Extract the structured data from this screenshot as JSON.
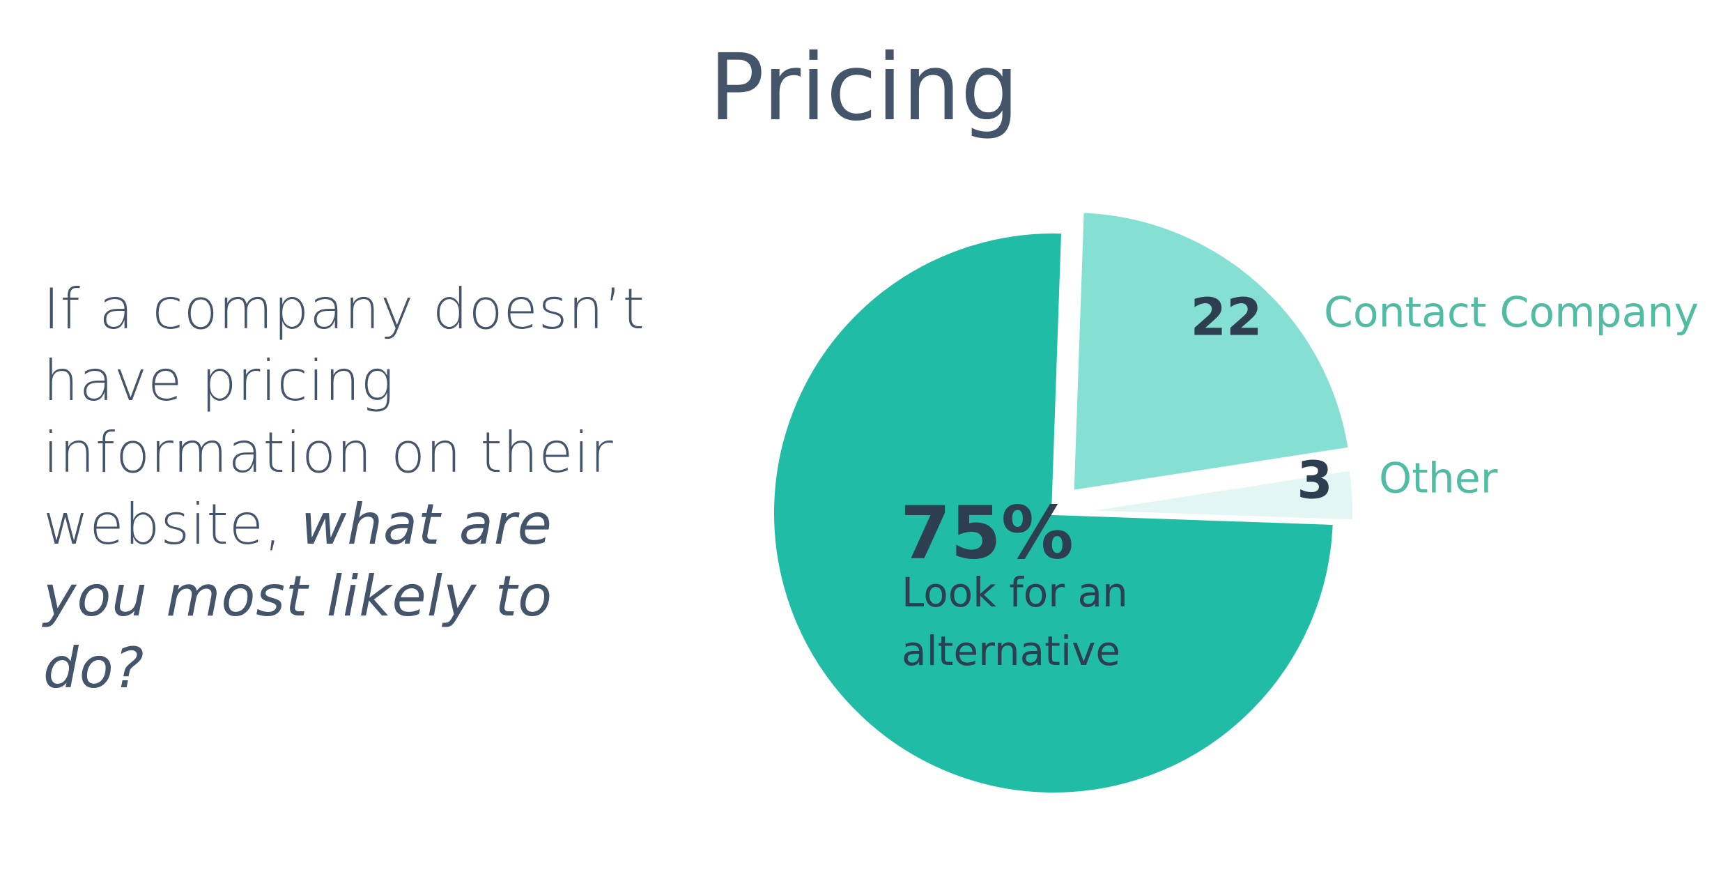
{
  "chart_data": {
    "type": "pie",
    "title": "Pricing",
    "question": [
      "If a company doesn’t have pricing information on their website,",
      "what are you most likely to do?"
    ],
    "categories": [
      "Look for an alternative",
      "Contact Company",
      "Other"
    ],
    "values": [
      75,
      22,
      3
    ],
    "value_labels": [
      "75%",
      "22",
      "3"
    ],
    "colors": [
      "#20bca5",
      "#85e0d3",
      "#e3f6f3"
    ]
  }
}
